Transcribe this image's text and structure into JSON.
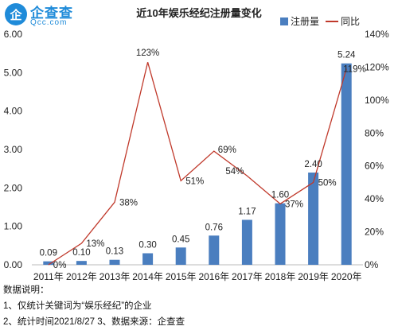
{
  "brand": {
    "logo_char": "企",
    "name": "企查查",
    "url": "Qcc.com"
  },
  "chart_data": {
    "type": "bar",
    "title": "近10年娱乐经纪注册量变化",
    "categories": [
      "2011年",
      "2012年",
      "2013年",
      "2014年",
      "2015年",
      "2016年",
      "2017年",
      "2018年",
      "2019年",
      "2020年"
    ],
    "series": [
      {
        "name": "注册量",
        "type": "bar",
        "axis": "left",
        "color": "#4a7ebf",
        "values": [
          0.09,
          0.1,
          0.13,
          0.3,
          0.45,
          0.76,
          1.17,
          1.6,
          2.4,
          5.24
        ],
        "labels": [
          "0.09",
          "0.10",
          "0.13",
          "0.30",
          "0.45",
          "0.76",
          "1.17",
          "1.60",
          "2.40",
          "5.24"
        ]
      },
      {
        "name": "同比",
        "type": "line",
        "axis": "right",
        "color": "#c0392b",
        "values": [
          0,
          13,
          38,
          123,
          51,
          69,
          54,
          37,
          50,
          119
        ],
        "labels": [
          "0%",
          "13%",
          "38%",
          "123%",
          "51%",
          "69%",
          "54%",
          "37%",
          "50%",
          "119%"
        ]
      }
    ],
    "left_axis": {
      "ylim": [
        0,
        6
      ],
      "ticks": [
        "0.00",
        "1.00",
        "2.00",
        "3.00",
        "4.00",
        "5.00",
        "6.00"
      ]
    },
    "right_axis": {
      "ylim": [
        0,
        140
      ],
      "ticks": [
        "0%",
        "20%",
        "40%",
        "60%",
        "80%",
        "100%",
        "120%",
        "140%"
      ]
    },
    "legend": "top-right",
    "grid": false
  },
  "notes": {
    "heading": "数据说明：",
    "line1": "1、仅统计关键词为“娱乐经纪”的企业",
    "line2": "2、统计时间2021/8/27   3、数据来源：企查查"
  }
}
